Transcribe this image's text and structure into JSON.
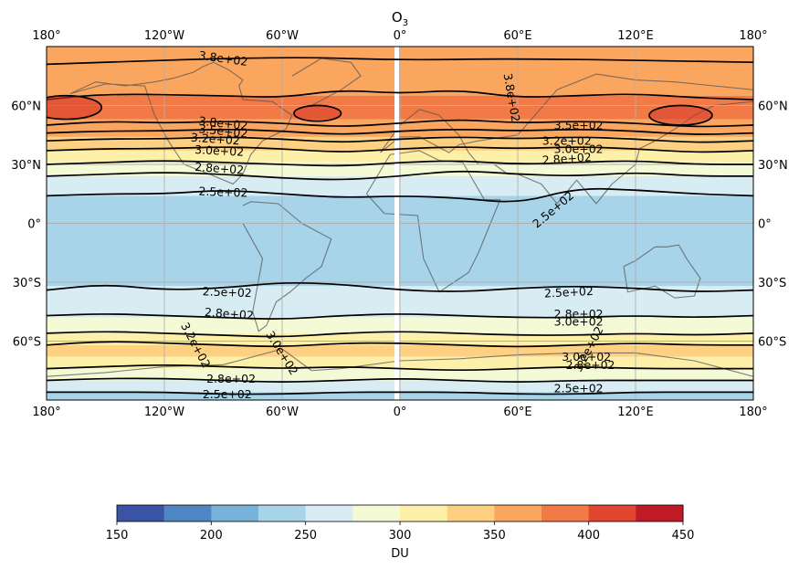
{
  "chart_data": {
    "type": "heatmap",
    "title": "O",
    "title_sub": "3",
    "xlabel": "",
    "ylabel": "",
    "xlim": [
      -180,
      180
    ],
    "ylim": [
      -90,
      90
    ],
    "grid": true,
    "x_ticks": [
      {
        "value": -180,
        "label": "180°"
      },
      {
        "value": -120,
        "label": "120°W"
      },
      {
        "value": -60,
        "label": "60°W"
      },
      {
        "value": 0,
        "label": "0°"
      },
      {
        "value": 60,
        "label": "60°E"
      },
      {
        "value": 120,
        "label": "120°E"
      },
      {
        "value": 180,
        "label": "180°"
      }
    ],
    "y_ticks": [
      {
        "value": 60,
        "label": "60°N"
      },
      {
        "value": 30,
        "label": "30°N"
      },
      {
        "value": 0,
        "label": "0°"
      },
      {
        "value": -30,
        "label": "30°S"
      },
      {
        "value": -60,
        "label": "60°S"
      }
    ],
    "fill_bands": [
      {
        "lat": [
          65,
          90
        ],
        "value": 370
      },
      {
        "lat": [
          53,
          65
        ],
        "value": 380
      },
      {
        "lat": [
          44,
          53
        ],
        "value": 360
      },
      {
        "lat": [
          37,
          44
        ],
        "value": 340
      },
      {
        "lat": [
          31,
          37
        ],
        "value": 315
      },
      {
        "lat": [
          24,
          31
        ],
        "value": 290
      },
      {
        "lat": [
          14,
          24
        ],
        "value": 262
      },
      {
        "lat": [
          -32,
          14
        ],
        "value": 240
      },
      {
        "lat": [
          -48,
          -32
        ],
        "value": 262
      },
      {
        "lat": [
          -56,
          -48
        ],
        "value": 285
      },
      {
        "lat": [
          -62,
          -56
        ],
        "value": 305
      },
      {
        "lat": [
          -68,
          -62
        ],
        "value": 330
      },
      {
        "lat": [
          -74,
          -68
        ],
        "value": 310
      },
      {
        "lat": [
          -80,
          -74
        ],
        "value": 285
      },
      {
        "lat": [
          -86,
          -80
        ],
        "value": 262
      },
      {
        "lat": [
          -90,
          -86
        ],
        "value": 245
      }
    ],
    "contour_lines": [
      {
        "lon": [
          -180,
          -60,
          0,
          60,
          180
        ],
        "lat": [
          81,
          85,
          83,
          84,
          82
        ]
      },
      {
        "lon": [
          -180,
          -150,
          -90,
          -60,
          -30,
          0,
          30,
          60,
          90,
          120,
          150,
          180
        ],
        "lat": [
          63,
          66,
          65,
          64,
          68,
          66,
          68,
          64,
          65,
          66,
          64,
          63
        ]
      },
      {
        "lon": [
          -180,
          -150,
          -120,
          -90,
          -60,
          -30,
          0,
          30,
          60,
          90,
          120,
          150,
          180
        ],
        "lat": [
          50,
          52,
          51,
          52,
          51,
          49,
          51,
          53,
          51,
          52,
          51,
          49,
          50
        ]
      },
      {
        "lon": [
          -180,
          -150,
          -120,
          -90,
          -60,
          -30,
          0,
          30,
          60,
          90,
          120,
          150,
          180
        ],
        "lat": [
          46,
          47,
          47,
          48,
          47,
          45,
          47,
          48,
          47,
          48,
          47,
          45,
          46
        ]
      },
      {
        "lon": [
          -180,
          -150,
          -120,
          -90,
          -60,
          -30,
          0,
          30,
          60,
          90,
          120,
          150,
          180
        ],
        "lat": [
          42,
          43,
          43,
          44,
          43,
          41,
          43,
          44,
          43,
          44,
          43,
          41,
          42
        ]
      },
      {
        "lon": [
          -180,
          -150,
          -120,
          -90,
          -60,
          -30,
          0,
          30,
          60,
          90,
          120,
          150,
          180
        ],
        "lat": [
          37,
          38,
          38,
          39,
          38,
          36,
          38,
          39,
          38,
          39,
          38,
          36,
          37
        ]
      },
      {
        "lon": [
          -180,
          -150,
          -120,
          -90,
          -60,
          -30,
          0,
          30,
          60,
          90,
          120,
          150,
          180
        ],
        "lat": [
          30,
          31,
          32,
          31,
          30,
          29,
          31,
          32,
          30,
          31,
          32,
          30,
          30
        ]
      },
      {
        "lon": [
          -180,
          -150,
          -120,
          -90,
          -60,
          -30,
          0,
          30,
          60,
          90,
          120,
          150,
          180
        ],
        "lat": [
          24,
          25,
          26,
          25,
          23,
          22,
          24,
          27,
          25,
          24,
          26,
          24,
          24
        ]
      },
      {
        "lon": [
          -180,
          -150,
          -120,
          -90,
          -60,
          -30,
          0,
          30,
          60,
          90,
          120,
          150,
          180
        ],
        "lat": [
          14,
          15,
          15,
          17,
          15,
          13,
          14,
          13,
          10,
          18,
          17,
          15,
          14
        ]
      },
      {
        "lon": [
          -180,
          -150,
          -120,
          -90,
          -60,
          -30,
          0,
          30,
          60,
          90,
          120,
          150,
          180
        ],
        "lat": [
          -34,
          -31,
          -34,
          -33,
          -30,
          -31,
          -34,
          -35,
          -33,
          -32,
          -33,
          -35,
          -34
        ]
      },
      {
        "lon": [
          -180,
          -150,
          -120,
          -90,
          -60,
          -30,
          0,
          30,
          60,
          90,
          120,
          150,
          180
        ],
        "lat": [
          -47,
          -46,
          -47,
          -48,
          -49,
          -47,
          -46,
          -47,
          -48,
          -48,
          -47,
          -48,
          -47
        ]
      },
      {
        "lon": [
          -180,
          -150,
          -120,
          -90,
          -60,
          -30,
          0,
          30,
          60,
          90,
          120,
          150,
          180
        ],
        "lat": [
          -56,
          -55,
          -56,
          -57,
          -58,
          -56,
          -55,
          -56,
          -57,
          -57,
          -56,
          -57,
          -56
        ]
      },
      {
        "lon": [
          -180,
          -150,
          -120,
          -90,
          -60,
          -30,
          0,
          30,
          60,
          90,
          120,
          150,
          180
        ],
        "lat": [
          -62,
          -60,
          -61,
          -62,
          -63,
          -61,
          -61,
          -62,
          -63,
          -62,
          -61,
          -62,
          -62
        ]
      },
      {
        "lon": [
          -180,
          -150,
          -120,
          -90,
          -60,
          -30,
          0,
          30,
          60,
          90,
          120,
          150,
          180
        ],
        "lat": [
          -74,
          -73,
          -72,
          -73,
          -74,
          -73,
          -74,
          -75,
          -74,
          -73,
          -74,
          -74,
          -74
        ]
      },
      {
        "lon": [
          -180,
          -150,
          -120,
          -90,
          -60,
          -30,
          0,
          30,
          60,
          90,
          120,
          150,
          180
        ],
        "lat": [
          -80,
          -79,
          -79,
          -80,
          -81,
          -80,
          -79,
          -80,
          -81,
          -80,
          -80,
          -80,
          -80
        ]
      },
      {
        "lon": [
          -180,
          -150,
          -120,
          -90,
          -60,
          -30,
          0,
          30,
          60,
          90,
          120,
          150,
          180
        ],
        "lat": [
          -86,
          -86,
          -86,
          -87,
          -87,
          -86,
          -86,
          -86,
          -87,
          -87,
          -86,
          -86,
          -86
        ]
      }
    ],
    "closed_contours": [
      {
        "center": [
          -170,
          59
        ],
        "radius": [
          18,
          6
        ]
      },
      {
        "center": [
          -42,
          56
        ],
        "radius": [
          12,
          4
        ]
      },
      {
        "center": [
          143,
          55
        ],
        "radius": [
          16,
          5
        ]
      }
    ],
    "contour_labels": [
      {
        "text": "3.8e+02",
        "lon": -90,
        "lat": 84,
        "angle": 8
      },
      {
        "text": "3.8e+02",
        "lon": 57,
        "lat": 64,
        "angle": 80
      },
      {
        "text": "3.8e+02",
        "lon": -90,
        "lat": 51,
        "angle": 6
      },
      {
        "text": "3.5e+02",
        "lon": -90,
        "lat": 47,
        "angle": 6
      },
      {
        "text": "3.2e+02",
        "lon": -94,
        "lat": 43,
        "angle": 4
      },
      {
        "text": "3.0e+02",
        "lon": -92,
        "lat": 37,
        "angle": 3
      },
      {
        "text": "2.8e+02",
        "lon": -92,
        "lat": 28,
        "angle": 4
      },
      {
        "text": "2.5e+02",
        "lon": -90,
        "lat": 16,
        "angle": 2
      },
      {
        "text": "3.5e+02",
        "lon": 91,
        "lat": 50,
        "angle": 0
      },
      {
        "text": "3.2e+02",
        "lon": 85,
        "lat": 42,
        "angle": 0
      },
      {
        "text": "3.0e+02",
        "lon": 91,
        "lat": 38,
        "angle": 0
      },
      {
        "text": "2.8e+02",
        "lon": 85,
        "lat": 33,
        "angle": -4
      },
      {
        "text": "2.5e+02",
        "lon": 78,
        "lat": 7,
        "angle": -40
      },
      {
        "text": "2.5e+02",
        "lon": -88,
        "lat": -35,
        "angle": 2
      },
      {
        "text": "2.8e+02",
        "lon": -87,
        "lat": -46,
        "angle": 4
      },
      {
        "text": "3.2e+02",
        "lon": -104,
        "lat": -62,
        "angle": 62
      },
      {
        "text": "3.0e+02",
        "lon": -60,
        "lat": -66,
        "angle": 58
      },
      {
        "text": "2.8e+02",
        "lon": -86,
        "lat": -79,
        "angle": 0
      },
      {
        "text": "2.5e+02",
        "lon": -88,
        "lat": -87,
        "angle": 0
      },
      {
        "text": "2.5e+02",
        "lon": 86,
        "lat": -35,
        "angle": -3
      },
      {
        "text": "2.8e+02",
        "lon": 91,
        "lat": -46,
        "angle": 0
      },
      {
        "text": "3.0e+02",
        "lon": 91,
        "lat": -50,
        "angle": 0
      },
      {
        "text": "3.2e+02",
        "lon": 96,
        "lat": -64,
        "angle": -62
      },
      {
        "text": "3.0e+02",
        "lon": 95,
        "lat": -68,
        "angle": 0
      },
      {
        "text": "2.8e+02",
        "lon": 97,
        "lat": -72,
        "angle": 0
      },
      {
        "text": "2.5e+02",
        "lon": 91,
        "lat": -84,
        "angle": 0
      }
    ],
    "land_outlines": [
      {
        "name": "north-america",
        "lon": [
          -168,
          -150,
          -130,
          -125,
          -118,
          -110,
          -97,
          -85,
          -80,
          -76,
          -70,
          -58,
          -55,
          -65,
          -80,
          -82,
          -80,
          -87,
          -95,
          -100,
          -105,
          -115,
          -125,
          -140,
          -155,
          -168
        ],
        "lat": [
          66,
          71,
          70,
          55,
          42,
          30,
          25,
          20,
          25,
          35,
          42,
          48,
          55,
          62,
          63,
          70,
          73,
          78,
          82,
          80,
          77,
          74,
          72,
          70,
          72,
          66
        ]
      },
      {
        "name": "south-america",
        "lon": [
          -80,
          -76,
          -62,
          -50,
          -35,
          -40,
          -48,
          -56,
          -63,
          -68,
          -72,
          -75,
          -70,
          -80
        ],
        "lat": [
          9,
          11,
          10,
          0,
          -8,
          -22,
          -28,
          -35,
          -40,
          -52,
          -55,
          -45,
          -18,
          0
        ]
      },
      {
        "name": "greenland",
        "lon": [
          -55,
          -45,
          -30,
          -20,
          -25,
          -40,
          -55
        ],
        "lat": [
          60,
          60,
          68,
          75,
          82,
          84,
          75
        ]
      },
      {
        "name": "europe-asia",
        "lon": [
          -10,
          0,
          10,
          25,
          30,
          40,
          60,
          80,
          100,
          120,
          140,
          160,
          180,
          180,
          160,
          150,
          140,
          130,
          122,
          120,
          108,
          100,
          90,
          80,
          72,
          60,
          55,
          48,
          40,
          35,
          30,
          20,
          10,
          0,
          -10
        ],
        "lat": [
          36,
          44,
          44,
          36,
          40,
          42,
          45,
          68,
          76,
          73,
          72,
          70,
          68,
          62,
          60,
          55,
          48,
          42,
          38,
          30,
          20,
          10,
          22,
          10,
          20,
          25,
          25,
          30,
          30,
          36,
          45,
          55,
          58,
          50,
          36
        ]
      },
      {
        "name": "africa",
        "lon": [
          -17,
          -5,
          10,
          20,
          32,
          43,
          51,
          40,
          35,
          20,
          12,
          9,
          -8,
          -17
        ],
        "lat": [
          15,
          35,
          37,
          32,
          31,
          12,
          12,
          -15,
          -25,
          -35,
          -18,
          4,
          5,
          15
        ]
      },
      {
        "name": "australia",
        "lon": [
          114,
          120,
          130,
          136,
          142,
          146,
          153,
          150,
          140,
          130,
          116,
          114
        ],
        "lat": [
          -22,
          -19,
          -12,
          -12,
          -11,
          -18,
          -28,
          -37,
          -38,
          -32,
          -35,
          -22
        ]
      },
      {
        "name": "antarctica",
        "lon": [
          -180,
          -150,
          -120,
          -90,
          -60,
          -45,
          -30,
          0,
          30,
          60,
          90,
          120,
          150,
          180
        ],
        "lat": [
          -78,
          -76,
          -73,
          -72,
          -64,
          -75,
          -74,
          -70,
          -69,
          -67,
          -66,
          -66,
          -70,
          -78
        ]
      }
    ],
    "colorbar": {
      "label": "DU",
      "min": 150,
      "max": 450,
      "step": 25,
      "ticks": [
        150,
        200,
        250,
        300,
        350,
        400,
        450
      ],
      "colors": [
        "#3a53a4",
        "#4f85c0",
        "#77b2d8",
        "#a7d4e8",
        "#d7edf3",
        "#f4fad6",
        "#fdf0a8",
        "#fdd181",
        "#fba65f",
        "#f17a46",
        "#e24530",
        "#c01a27"
      ]
    }
  }
}
